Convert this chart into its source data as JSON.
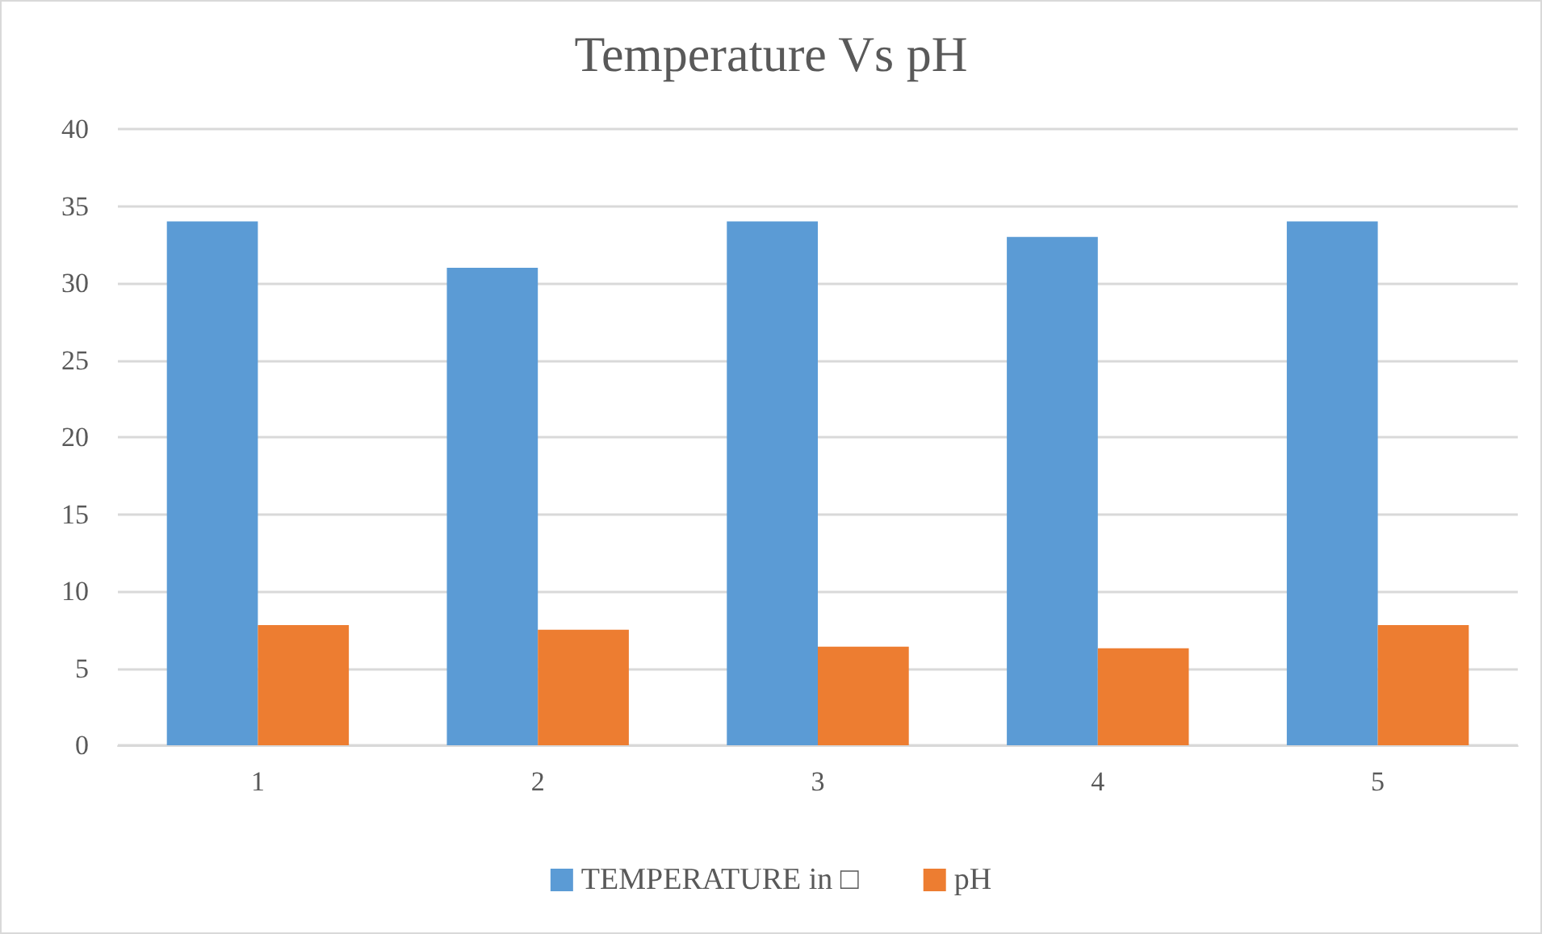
{
  "chart_data": {
    "type": "bar",
    "title": "Temperature Vs pH",
    "categories": [
      "1",
      "2",
      "3",
      "4",
      "5"
    ],
    "series": [
      {
        "name": "TEMPERATURE in □",
        "color": "#5b9bd5",
        "values": [
          34,
          31,
          34,
          33,
          34
        ]
      },
      {
        "name": "pH",
        "color": "#ed7d31",
        "values": [
          7.8,
          7.5,
          6.4,
          6.3,
          7.8
        ]
      }
    ],
    "ylim": [
      0,
      40
    ],
    "yticks": [
      0,
      5,
      10,
      15,
      20,
      25,
      30,
      35,
      40
    ],
    "grid": "y",
    "legend": "bottom"
  }
}
